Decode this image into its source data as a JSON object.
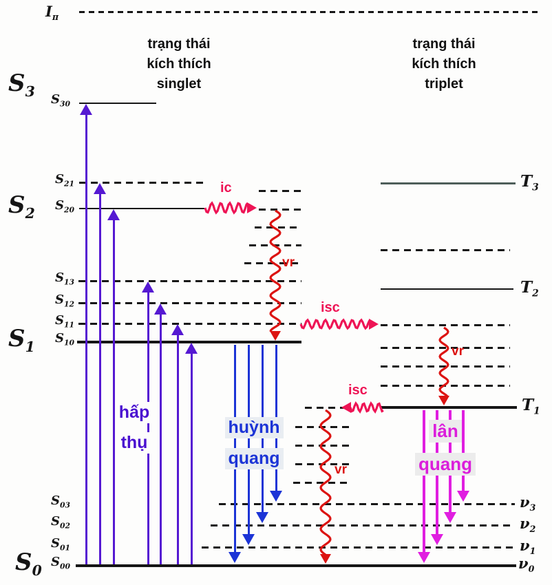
{
  "headers": {
    "singlet": {
      "line1": "trạng thái",
      "line2": "kích thích",
      "line3": "singlet"
    },
    "triplet": {
      "line1": "trạng thái",
      "line2": "kích thích",
      "line3": "triplet"
    }
  },
  "states": {
    "i_pi": {
      "base": "I",
      "sub": "π"
    },
    "s3": {
      "base": "S",
      "sub": "3"
    },
    "s30": {
      "base": "S",
      "sub": "30"
    },
    "s21": {
      "base": "S",
      "sub": "21"
    },
    "s2": {
      "base": "S",
      "sub": "2"
    },
    "s20": {
      "base": "S",
      "sub": "20"
    },
    "s13": {
      "base": "S",
      "sub": "13"
    },
    "s12": {
      "base": "S",
      "sub": "12"
    },
    "s11": {
      "base": "S",
      "sub": "11"
    },
    "s1": {
      "base": "S",
      "sub": "1"
    },
    "s10": {
      "base": "S",
      "sub": "10"
    },
    "s03": {
      "base": "S",
      "sub": "03"
    },
    "s02": {
      "base": "S",
      "sub": "02"
    },
    "s01": {
      "base": "S",
      "sub": "01"
    },
    "s0": {
      "base": "S",
      "sub": "0"
    },
    "s00": {
      "base": "S",
      "sub": "00"
    },
    "t3": {
      "base": "T",
      "sub": "3"
    },
    "t2": {
      "base": "T",
      "sub": "2"
    },
    "t1": {
      "base": "T",
      "sub": "1"
    },
    "nu3": {
      "base": "ν",
      "sub": "3"
    },
    "nu2": {
      "base": "ν",
      "sub": "2"
    },
    "nu1": {
      "base": "ν",
      "sub": "1"
    },
    "nu0": {
      "base": "ν",
      "sub": "0"
    }
  },
  "processes": {
    "absorption": {
      "line1": "hấp",
      "line2": "thụ"
    },
    "fluorescence": {
      "line1": "huỳnh",
      "line2": "quang"
    },
    "phosphorescence": {
      "line1": "lân",
      "line2": "quang"
    },
    "ic": "ic",
    "isc": "isc",
    "vr": "vr"
  },
  "colors": {
    "absorption_arrow": "#5519d2",
    "fluorescence_arrow": "#1c34d6",
    "phosphorescence_arrow": "#e01ee0",
    "vr_wave": "#dc1412",
    "ic_isc_wave": "#ee1455",
    "level_line": "#161616",
    "t3_line": "#4e5e5a"
  },
  "diagram_data": {
    "type": "jablonski-energy-diagram",
    "ionization_level": "Iπ",
    "singlet_states": [
      "S3",
      "S2",
      "S1",
      "S0"
    ],
    "singlet_sublevels": [
      "S30",
      "S21",
      "S20",
      "S13",
      "S12",
      "S11",
      "S10",
      "S03",
      "S02",
      "S01",
      "S00"
    ],
    "triplet_states": [
      "T3",
      "T2",
      "T1"
    ],
    "ground_vibrational_levels": [
      "ν3",
      "ν2",
      "ν1",
      "ν0"
    ],
    "transitions": [
      {
        "name": "hấp thụ",
        "type": "absorption",
        "from": "S00",
        "to": [
          "S30",
          "S21",
          "S20",
          "S13",
          "S12",
          "S11",
          "S10"
        ]
      },
      {
        "name": "huỳnh quang",
        "type": "fluorescence",
        "from": "S10",
        "to": [
          "ν0",
          "ν1",
          "ν2",
          "ν3"
        ]
      },
      {
        "name": "lân quang",
        "type": "phosphorescence",
        "from": "T1",
        "to": [
          "ν0",
          "ν1",
          "ν2",
          "ν3"
        ]
      },
      {
        "name": "ic",
        "type": "internal conversion",
        "from": "S20",
        "to": "S1 vibrational manifold"
      },
      {
        "name": "isc",
        "type": "intersystem crossing",
        "from": "S1 vibrational level",
        "to": "triplet vibrational manifold"
      },
      {
        "name": "isc",
        "type": "intersystem crossing",
        "from": "T1",
        "to": "S0 vibrational manifold"
      },
      {
        "name": "vr",
        "type": "vibrational relaxation",
        "occurrences": 3
      }
    ]
  }
}
